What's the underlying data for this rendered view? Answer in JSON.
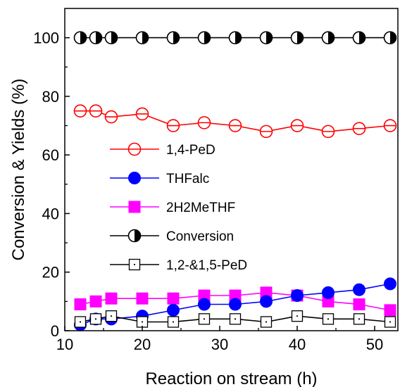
{
  "chart_data": {
    "type": "line",
    "title": "",
    "xlabel": "Reaction on stream (h)",
    "ylabel": "Conversion & Yields (%)",
    "xlim": [
      10,
      53
    ],
    "ylim": [
      0,
      110
    ],
    "xticks": [
      10,
      20,
      30,
      40,
      50
    ],
    "yticks": [
      0,
      20,
      40,
      60,
      80,
      100
    ],
    "grid": false,
    "legend_position": "center-left",
    "x": [
      12,
      14,
      16,
      20,
      24,
      28,
      32,
      36,
      40,
      44,
      48,
      52
    ],
    "series": [
      {
        "name": "1,4-PeD",
        "marker": "circle-open",
        "color": "#ff0000",
        "values": [
          75,
          75,
          73,
          74,
          70,
          71,
          70,
          68,
          70,
          68,
          69,
          70
        ]
      },
      {
        "name": "THFalc",
        "marker": "circle-filled",
        "color": "#0000ff",
        "values": [
          2,
          4,
          4,
          5,
          7,
          9,
          9,
          10,
          12,
          13,
          14,
          16
        ]
      },
      {
        "name": "2H2MeTHF",
        "marker": "square-filled",
        "color": "#ff00ff",
        "values": [
          9,
          10,
          11,
          11,
          11,
          12,
          12,
          13,
          12,
          10,
          9,
          7
        ]
      },
      {
        "name": "Conversion",
        "marker": "circle-half",
        "color": "#000000",
        "values": [
          100,
          100,
          100,
          100,
          100,
          100,
          100,
          100,
          100,
          100,
          100,
          100
        ]
      },
      {
        "name": "1,2-&1,5-PeD",
        "marker": "square-open-dot",
        "color": "#000000",
        "values": [
          3,
          4,
          5,
          3,
          3,
          4,
          4,
          3,
          5,
          4,
          4,
          3
        ]
      }
    ]
  }
}
